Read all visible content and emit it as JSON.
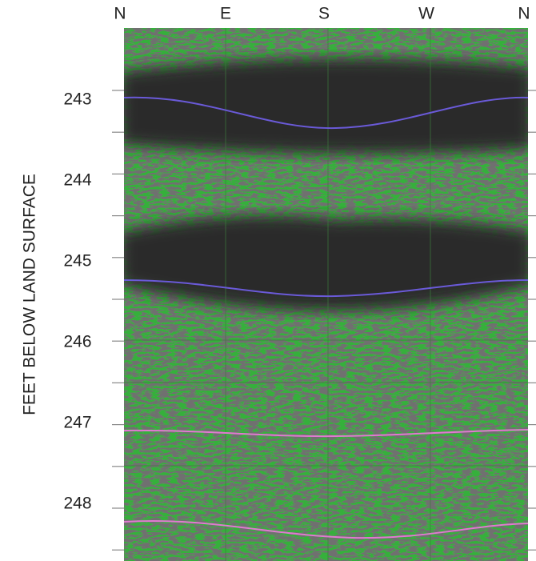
{
  "axis": {
    "title": "FEET BELOW LAND SURFACE",
    "top_labels": [
      "N",
      "E",
      "S",
      "W",
      "N"
    ],
    "depth_labels": [
      "243",
      "244",
      "245",
      "246",
      "247",
      "248"
    ]
  }
}
